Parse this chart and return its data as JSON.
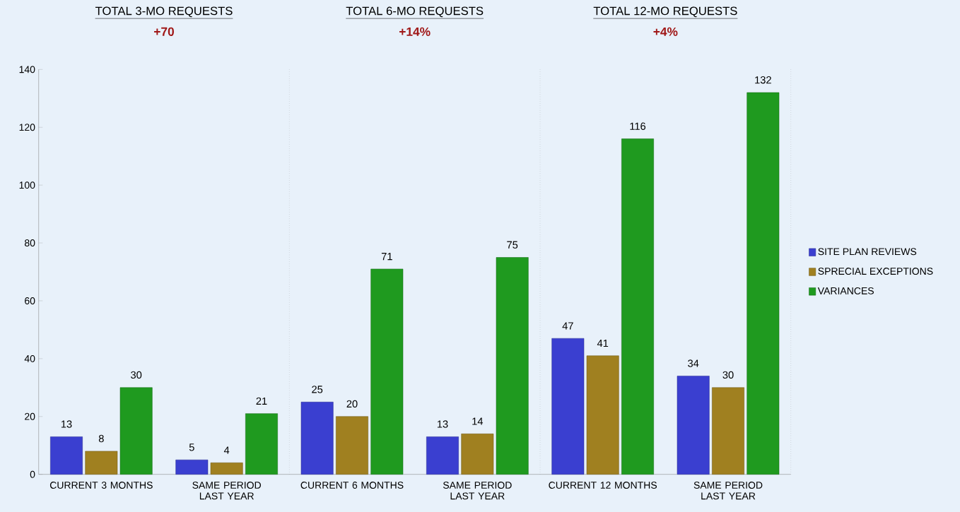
{
  "chart_data": {
    "type": "bar",
    "categories": [
      "CURRENT 3 MONTHS",
      "SAME PERIOD LAST YEAR",
      "CURRENT 6 MONTHS",
      "SAME PERIOD LAST YEAR",
      "CURRENT 12 MONTHS",
      "SAME PERIOD LAST YEAR"
    ],
    "series": [
      {
        "name": "SITE PLAN REVIEWS",
        "color": "#3a3fd0",
        "values": [
          13,
          5,
          25,
          13,
          47,
          34
        ]
      },
      {
        "name": "SPRECIAL EXCEPTIONS",
        "color": "#a08020",
        "values": [
          8,
          4,
          20,
          14,
          41,
          30
        ]
      },
      {
        "name": "VARIANCES",
        "color": "#1f9a1f",
        "values": [
          30,
          21,
          71,
          75,
          116,
          132
        ]
      }
    ],
    "ylim": [
      0,
      140
    ],
    "yticks": [
      0,
      20,
      40,
      60,
      80,
      100,
      120,
      140
    ],
    "data_labels": true,
    "grid": false,
    "legend": "right",
    "annotations": [
      "TOTAL 3-MO REQUESTS",
      "+70",
      "TOTAL 6-MO REQUESTS",
      "+14%",
      "TOTAL 12-MO REQUESTS",
      "+4%"
    ]
  }
}
